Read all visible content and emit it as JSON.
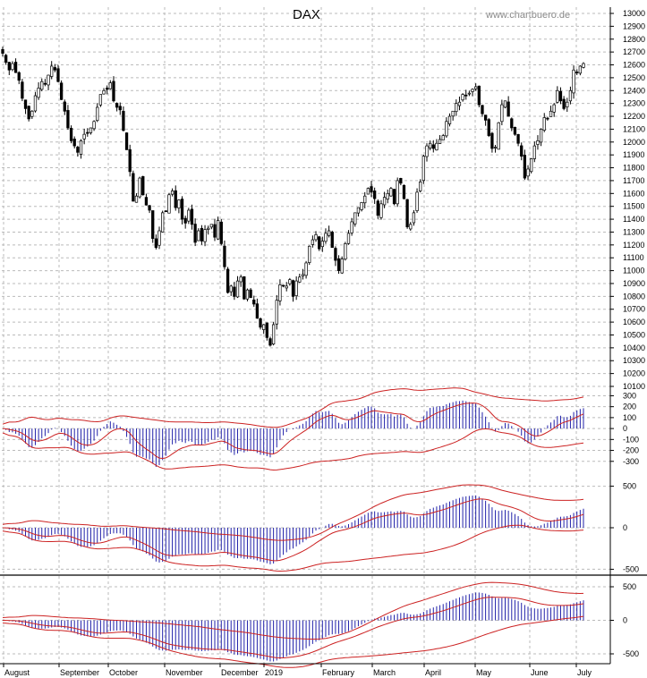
{
  "title": "DAX",
  "watermark": "www.chartbuero.de",
  "months": [
    "August",
    "September",
    "October",
    "November",
    "December",
    "2019",
    "February",
    "March",
    "April",
    "May",
    "June",
    "July"
  ],
  "chart_data": [
    {
      "type": "candlestick",
      "title": "DAX",
      "ylim": [
        10100,
        13000
      ],
      "yticks": [
        10100,
        10200,
        10300,
        10400,
        10500,
        10600,
        10700,
        10800,
        10900,
        11000,
        11100,
        11200,
        11300,
        11400,
        11500,
        11600,
        11700,
        11800,
        11900,
        12000,
        12100,
        12200,
        12300,
        12400,
        12500,
        12600,
        12700,
        12800,
        12900,
        13000
      ],
      "close": [
        12690,
        12620,
        12560,
        12610,
        12540,
        12480,
        12340,
        12260,
        12180,
        12240,
        12360,
        12420,
        12470,
        12450,
        12520,
        12590,
        12560,
        12470,
        12330,
        12240,
        12110,
        12010,
        11970,
        11920,
        12010,
        12060,
        12070,
        12110,
        12160,
        12270,
        12370,
        12400,
        12410,
        12460,
        12320,
        12270,
        12250,
        12090,
        11940,
        11770,
        11540,
        11580,
        11720,
        11590,
        11510,
        11470,
        11250,
        11180,
        11310,
        11450,
        11460,
        11590,
        11620,
        11490,
        11550,
        11400,
        11370,
        11470,
        11360,
        11220,
        11310,
        11230,
        11320,
        11330,
        11360,
        11260,
        11390,
        11210,
        11030,
        10830,
        10880,
        10800,
        10920,
        10950,
        10780,
        10850,
        10790,
        10740,
        10630,
        10560,
        10580,
        10480,
        10420,
        10580,
        10770,
        10890,
        10880,
        10880,
        10930,
        10800,
        10920,
        10950,
        10970,
        11060,
        11190,
        11240,
        11280,
        11170,
        11230,
        11290,
        11310,
        11180,
        11080,
        11000,
        11090,
        11210,
        11290,
        11380,
        11450,
        11490,
        11530,
        11580,
        11640,
        11610,
        11560,
        11430,
        11520,
        11570,
        11600,
        11640,
        11520,
        11700,
        11680,
        11560,
        11340,
        11360,
        11450,
        11610,
        11690,
        11890,
        11970,
        11990,
        11950,
        11990,
        12020,
        12050,
        12160,
        12200,
        12240,
        12300,
        12310,
        12370,
        12360,
        12380,
        12410,
        12430,
        12290,
        12220,
        12170,
        12050,
        11950,
        11960,
        12150,
        12290,
        12320,
        12200,
        12110,
        12060,
        11990,
        11890,
        11720,
        11790,
        11870,
        11970,
        12010,
        12100,
        12190,
        12180,
        12240,
        12290,
        12400,
        12320,
        12260,
        12310,
        12400,
        12560,
        12540,
        12590,
        12610
      ],
      "macd_fast": {
        "ylim": [
          -400,
          320
        ],
        "yticks": [
          -300,
          -200,
          -100,
          0,
          100,
          200,
          300
        ]
      },
      "macd_mid": {
        "ylim": [
          -560,
          560
        ],
        "yticks": [
          -500,
          0,
          500
        ]
      },
      "macd_slow": {
        "ylim": [
          -620,
          620
        ],
        "yticks": [
          -500,
          0,
          500
        ]
      }
    }
  ]
}
